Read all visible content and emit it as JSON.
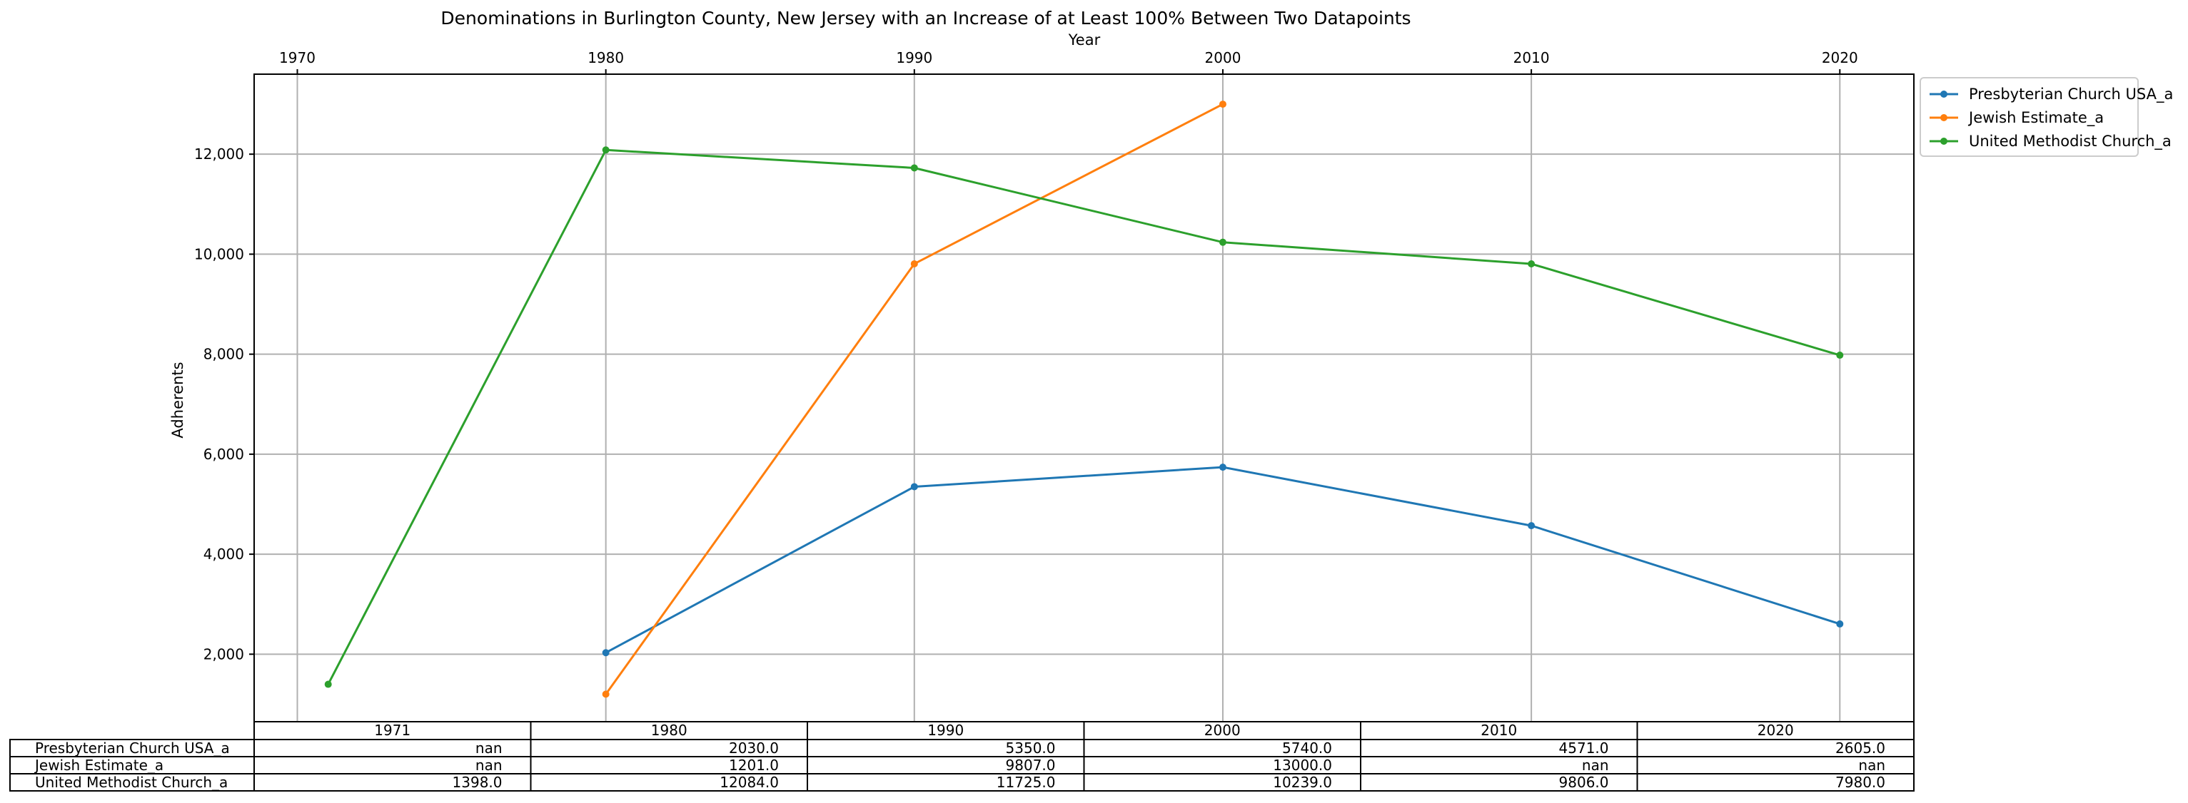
{
  "chart_data": {
    "type": "line",
    "title": "Denominations in Burlington County, New Jersey with an Increase of at Least 100% Between Two Datapoints",
    "xlabel": "Year",
    "ylabel": "Adherents",
    "x_ticks": [
      1970,
      1980,
      1990,
      2000,
      2010,
      2020
    ],
    "y_ticks": [
      2000,
      4000,
      6000,
      8000,
      10000,
      12000
    ],
    "y_tick_labels": [
      "2,000",
      "4,000",
      "6,000",
      "8,000",
      "10,000",
      "12,000"
    ],
    "xlim": [
      1968.6,
      2022.4
    ],
    "ylim": [
      650,
      13600
    ],
    "grid": true,
    "legend_placement": "outside-top-right",
    "categories": [
      "1971",
      "1980",
      "1990",
      "2000",
      "2010",
      "2020"
    ],
    "x": [
      1971,
      1980,
      1990,
      2000,
      2010,
      2020
    ],
    "series": [
      {
        "name": "Presbyterian Church USA_a",
        "color": "#1f77b4",
        "values": [
          null,
          2030,
          5350,
          5740,
          4571,
          2605
        ],
        "table_values": [
          "nan",
          "2030.0",
          "5350.0",
          "5740.0",
          "4571.0",
          "2605.0"
        ]
      },
      {
        "name": "Jewish Estimate_a",
        "color": "#ff7f0e",
        "values": [
          null,
          1201,
          9807,
          13000,
          null,
          null
        ],
        "table_values": [
          "nan",
          "1201.0",
          "9807.0",
          "13000.0",
          "nan",
          "nan"
        ]
      },
      {
        "name": "United Methodist Church_a",
        "color": "#2ca02c",
        "values": [
          1398,
          12084,
          11725,
          10239,
          9806,
          7980
        ],
        "table_values": [
          "1398.0",
          "12084.0",
          "11725.0",
          "10239.0",
          "9806.0",
          "7980.0"
        ]
      }
    ]
  }
}
